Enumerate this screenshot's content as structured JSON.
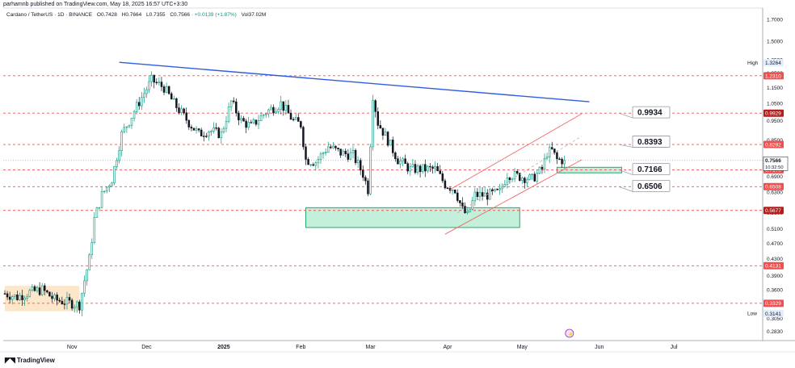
{
  "header": {
    "publisher_line": "parhamnb published on TradingView.com, May 18, 2025 16:57 UTC+3:30",
    "symbol": "Cardano / TetherUS · 1D · BINANCE",
    "open": "O0.7428",
    "high": "H0.7664",
    "low": "L0.7355",
    "close": "C0.7566",
    "change": "+0.0139 (+1.87%)",
    "volume": "Vol37.02M"
  },
  "footer": {
    "brand": "TradingView"
  },
  "colors": {
    "bull": "#089981",
    "bear": "#131722",
    "level_line": "#e05a5a",
    "resistance_line": "#2f5fe0",
    "channel": "#f06a6a",
    "zone_green": "#7ddcae",
    "zone_orange": "#fbd7a6",
    "label_red": "#ef4f4f",
    "label_darkred": "#b71c1c"
  },
  "chart_data": {
    "type": "candlestick",
    "title": "Cardano / TetherUS · 1D · BINANCE",
    "y_scale": "log",
    "ylim": [
      0.27,
      1.75
    ],
    "x_ticks": [
      {
        "label": "Nov",
        "date": "2024-11-01"
      },
      {
        "label": "Dec",
        "date": "2024-12-01"
      },
      {
        "label": "2025",
        "date": "2025-01-01"
      },
      {
        "label": "Feb",
        "date": "2025-02-01"
      },
      {
        "label": "Mar",
        "date": "2025-03-01"
      },
      {
        "label": "Apr",
        "date": "2025-04-01"
      },
      {
        "label": "May",
        "date": "2025-05-01"
      },
      {
        "label": "Jun",
        "date": "2025-06-01"
      },
      {
        "label": "Jul",
        "date": "2025-07-01"
      }
    ],
    "y_ticks": [
      0.283,
      0.305,
      0.33,
      0.36,
      0.39,
      0.43,
      0.47,
      0.51,
      0.56,
      0.63,
      0.69,
      0.76,
      0.85,
      0.95,
      1.05,
      1.15,
      1.25,
      1.35,
      1.5,
      1.7
    ],
    "y_tick_labels": [
      "0.2830",
      "0.3050",
      "0.3300",
      "0.3600",
      "0.3900",
      "0.4300",
      "0.4700",
      "0.5100",
      "0.5600",
      "0.6300",
      "0.6900",
      "0.7600",
      "0.8500",
      "0.9500",
      "1.0500",
      "1.1500",
      "1.2500",
      "1.3500",
      "1.5000",
      "1.7000"
    ],
    "horizontal_levels": [
      {
        "value": 1.231,
        "label": "1.2310",
        "style": "red"
      },
      {
        "value": 0.9929,
        "label": "0.9929",
        "style": "darkred"
      },
      {
        "value": 0.8292,
        "label": "0.8292",
        "style": "red"
      },
      {
        "value": 0.717,
        "label": "0.7170",
        "style": "red"
      },
      {
        "value": 0.6508,
        "label": "0.6508",
        "style": "red"
      },
      {
        "value": 0.5677,
        "label": "0.5677",
        "style": "darkred"
      },
      {
        "value": 0.4131,
        "label": "0.4131",
        "style": "red"
      },
      {
        "value": 0.3329,
        "label": "0.3329",
        "style": "red"
      }
    ],
    "price_markers": [
      {
        "label": "High",
        "value": 1.3264,
        "text": "1.3264"
      },
      {
        "label": "Low",
        "value": 0.3141,
        "text": "0.3141"
      }
    ],
    "last_price": {
      "value": 0.7566,
      "text": "0.7566",
      "countdown": "10:32:50"
    },
    "target_callouts": [
      {
        "text": "0.9934",
        "value": 0.9934,
        "points_to": 0.9929
      },
      {
        "text": "0.8393",
        "value": 0.8393,
        "points_to": 0.8292
      },
      {
        "text": "0.7166",
        "value": 0.7166,
        "points_to": 0.717
      },
      {
        "text": "0.6506",
        "value": 0.6506,
        "points_to": 0.6508
      }
    ],
    "resistance_trendline": [
      {
        "date": "2024-11-20",
        "value": 1.33
      },
      {
        "date": "2025-05-28",
        "value": 1.06
      }
    ],
    "channel": {
      "upper": [
        {
          "date": "2025-04-02",
          "value": 0.64
        },
        {
          "date": "2025-05-25",
          "value": 0.99
        }
      ],
      "mid": [
        {
          "date": "2025-04-05",
          "value": 0.56
        },
        {
          "date": "2025-05-25",
          "value": 0.87
        }
      ],
      "lower": [
        {
          "date": "2025-03-31",
          "value": 0.4953
        },
        {
          "date": "2025-05-25",
          "value": 0.76
        }
      ]
    },
    "zones": [
      {
        "name": "support",
        "from": "2025-02-03",
        "to": "2025-04-30",
        "top": 0.5768,
        "bottom": 0.5146,
        "color": "green"
      },
      {
        "name": "retest",
        "from": "2025-05-15",
        "to": "2025-06-10",
        "top": 0.7275,
        "bottom": 0.7046,
        "color": "green"
      },
      {
        "name": "accumulation",
        "from": "2024-10-05",
        "to": "2024-11-04",
        "top": 0.368,
        "bottom": 0.318,
        "color": "orange"
      }
    ],
    "ohlc_anchors": [
      [
        "2024-10-05",
        0.352
      ],
      [
        "2024-10-10",
        0.345
      ],
      [
        "2024-10-15",
        0.355
      ],
      [
        "2024-10-20",
        0.36
      ],
      [
        "2024-10-25",
        0.34
      ],
      [
        "2024-10-30",
        0.335
      ],
      [
        "2024-11-04",
        0.33
      ],
      [
        "2024-11-06",
        0.38
      ],
      [
        "2024-11-08",
        0.43
      ],
      [
        "2024-11-10",
        0.54
      ],
      [
        "2024-11-13",
        0.62
      ],
      [
        "2024-11-17",
        0.68
      ],
      [
        "2024-11-21",
        0.88
      ],
      [
        "2024-11-24",
        0.95
      ],
      [
        "2024-11-28",
        1.06
      ],
      [
        "2024-12-03",
        1.2
      ],
      [
        "2024-12-08",
        1.15
      ],
      [
        "2024-12-12",
        1.05
      ],
      [
        "2024-12-18",
        0.94
      ],
      [
        "2024-12-22",
        0.88
      ],
      [
        "2024-12-26",
        0.9
      ],
      [
        "2024-12-31",
        0.88
      ],
      [
        "2025-01-04",
        1.06
      ],
      [
        "2025-01-08",
        0.95
      ],
      [
        "2025-01-12",
        0.92
      ],
      [
        "2025-01-18",
        1.0
      ],
      [
        "2025-01-24",
        1.05
      ],
      [
        "2025-01-29",
        0.95
      ],
      [
        "2025-02-01",
        0.93
      ],
      [
        "2025-02-03",
        0.76
      ],
      [
        "2025-02-07",
        0.75
      ],
      [
        "2025-02-12",
        0.82
      ],
      [
        "2025-02-17",
        0.79
      ],
      [
        "2025-02-22",
        0.78
      ],
      [
        "2025-02-26",
        0.7
      ],
      [
        "2025-02-28",
        0.64
      ],
      [
        "2025-03-02",
        1.1
      ],
      [
        "2025-03-04",
        0.94
      ],
      [
        "2025-03-08",
        0.85
      ],
      [
        "2025-03-12",
        0.76
      ],
      [
        "2025-03-17",
        0.72
      ],
      [
        "2025-03-22",
        0.72
      ],
      [
        "2025-03-27",
        0.72
      ],
      [
        "2025-03-31",
        0.66
      ],
      [
        "2025-04-04",
        0.64
      ],
      [
        "2025-04-07",
        0.57
      ],
      [
        "2025-04-09",
        0.55
      ],
      [
        "2025-04-12",
        0.62
      ],
      [
        "2025-04-17",
        0.62
      ],
      [
        "2025-04-22",
        0.63
      ],
      [
        "2025-04-25",
        0.7
      ],
      [
        "2025-04-30",
        0.69
      ],
      [
        "2025-05-05",
        0.68
      ],
      [
        "2025-05-09",
        0.72
      ],
      [
        "2025-05-11",
        0.79
      ],
      [
        "2025-05-13",
        0.8
      ],
      [
        "2025-05-15",
        0.76
      ],
      [
        "2025-05-18",
        0.757
      ]
    ]
  }
}
